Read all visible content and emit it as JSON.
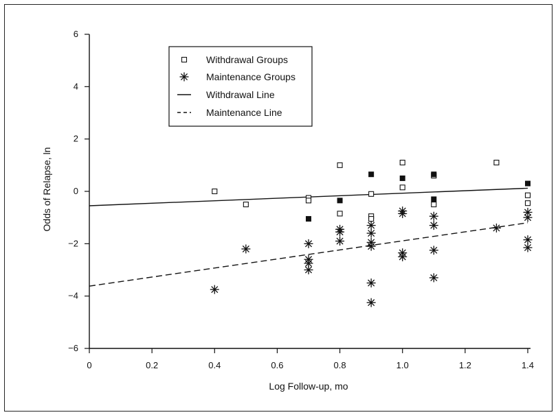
{
  "chart_data": {
    "type": "scatter",
    "xlabel": "Log Follow-up, mo",
    "ylabel": "Odds of Relapse, ln",
    "xlim": [
      0,
      1.4
    ],
    "ylim": [
      -6,
      6
    ],
    "x_ticks": [
      "0",
      "0.2",
      "0.4",
      "0.6",
      "0.8",
      "1.0",
      "1.2",
      "1.4"
    ],
    "y_ticks": [
      "6",
      "4",
      "2",
      "0",
      "−2",
      "−4",
      "−6"
    ],
    "x_tick_values": [
      0,
      0.2,
      0.4,
      0.6,
      0.8,
      1.0,
      1.2,
      1.4
    ],
    "y_tick_values": [
      6,
      4,
      2,
      0,
      -2,
      -4,
      -6
    ],
    "grid": false,
    "legend_position": "top-left",
    "legend": [
      {
        "label": "Withdrawal Groups",
        "symbol": "open-square"
      },
      {
        "label": "Maintenance Groups",
        "symbol": "asterisk"
      },
      {
        "label": "Withdrawal Line",
        "symbol": "solid-line"
      },
      {
        "label": "Maintenance Line",
        "symbol": "dashed-line"
      }
    ],
    "series": [
      {
        "name": "Withdrawal Groups",
        "marker": "open-square",
        "points": [
          [
            0.4,
            0.0
          ],
          [
            0.5,
            -0.5
          ],
          [
            0.7,
            -0.25
          ],
          [
            0.7,
            -0.35
          ],
          [
            0.8,
            1.0
          ],
          [
            0.8,
            -0.85
          ],
          [
            0.9,
            -0.1
          ],
          [
            0.9,
            -0.95
          ],
          [
            0.9,
            -1.05
          ],
          [
            1.0,
            1.1
          ],
          [
            1.0,
            0.15
          ],
          [
            1.1,
            0.6
          ],
          [
            1.1,
            -0.5
          ],
          [
            1.3,
            1.1
          ],
          [
            1.4,
            -0.15
          ],
          [
            1.4,
            -0.45
          ]
        ]
      },
      {
        "name": "",
        "marker": "filled-square",
        "points": [
          [
            0.7,
            -1.05
          ],
          [
            0.8,
            -0.35
          ],
          [
            0.9,
            0.65
          ],
          [
            1.0,
            0.5
          ],
          [
            1.1,
            0.65
          ],
          [
            1.1,
            -0.3
          ],
          [
            1.4,
            0.3
          ]
        ]
      },
      {
        "name": "Maintenance Groups",
        "marker": "asterisk",
        "points": [
          [
            0.4,
            -3.75
          ],
          [
            0.5,
            -2.2
          ],
          [
            0.7,
            -2.0
          ],
          [
            0.7,
            -2.6
          ],
          [
            0.7,
            -2.75
          ],
          [
            0.7,
            -3.0
          ],
          [
            0.8,
            -1.45
          ],
          [
            0.8,
            -1.55
          ],
          [
            0.8,
            -1.9
          ],
          [
            0.9,
            -1.3
          ],
          [
            0.9,
            -1.6
          ],
          [
            0.9,
            -1.95
          ],
          [
            0.9,
            -2.1
          ],
          [
            0.9,
            -3.5
          ],
          [
            0.9,
            -4.25
          ],
          [
            1.0,
            -0.75
          ],
          [
            1.0,
            -0.85
          ],
          [
            1.0,
            -2.35
          ],
          [
            1.0,
            -2.5
          ],
          [
            1.1,
            -0.95
          ],
          [
            1.1,
            -1.3
          ],
          [
            1.1,
            -2.25
          ],
          [
            1.1,
            -3.3
          ],
          [
            1.3,
            -1.4
          ],
          [
            1.4,
            -0.8
          ],
          [
            1.4,
            -1.0
          ],
          [
            1.4,
            -1.85
          ],
          [
            1.4,
            -2.15
          ]
        ]
      },
      {
        "name": "Withdrawal Line",
        "type": "line",
        "style": "solid",
        "points": [
          [
            0,
            -0.55
          ],
          [
            1.4,
            0.12
          ]
        ]
      },
      {
        "name": "Maintenance Line",
        "type": "line",
        "style": "dashed",
        "points": [
          [
            0,
            -3.62
          ],
          [
            1.4,
            -1.2
          ]
        ]
      }
    ]
  }
}
